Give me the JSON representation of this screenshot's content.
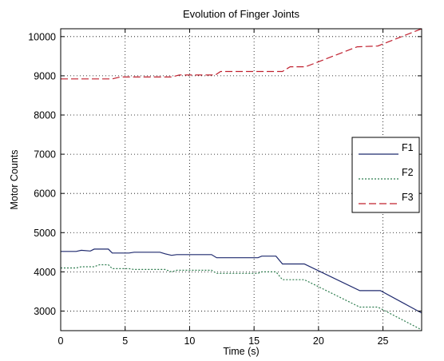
{
  "chart_data": {
    "type": "line",
    "title": "Evolution of Finger Joints",
    "xlabel": "Time (s)",
    "ylabel": "Motor Counts",
    "xlim": [
      0,
      28
    ],
    "ylim": [
      2500,
      10200
    ],
    "xticks": [
      0,
      5,
      10,
      15,
      20,
      25
    ],
    "yticks": [
      3000,
      4000,
      5000,
      6000,
      7000,
      8000,
      9000,
      10000
    ],
    "grid": true,
    "legend": "right",
    "series": [
      {
        "name": "F1",
        "color": "#1f2a6e",
        "dash": "solid",
        "x": [
          0,
          1.2,
          1.6,
          2.3,
          2.6,
          3.7,
          4.0,
          5.3,
          5.7,
          7.7,
          8.1,
          8.6,
          9.0,
          11.7,
          12.1,
          15.3,
          15.6,
          16.7,
          17.2,
          18.9,
          23.2,
          24.8,
          28
        ],
        "y": [
          4520,
          4520,
          4550,
          4530,
          4580,
          4580,
          4480,
          4480,
          4500,
          4500,
          4460,
          4420,
          4440,
          4440,
          4360,
          4360,
          4400,
          4400,
          4200,
          4200,
          3520,
          3520,
          2950
        ]
      },
      {
        "name": "F2",
        "color": "#2e7d4f",
        "dash": "dotted",
        "x": [
          0,
          1.2,
          1.6,
          2.6,
          3.0,
          3.7,
          4.0,
          5.3,
          5.7,
          8.1,
          8.6,
          9.0,
          11.7,
          12.1,
          15.3,
          15.6,
          16.7,
          17.2,
          18.9,
          23.2,
          24.6,
          28
        ],
        "y": [
          4100,
          4100,
          4130,
          4130,
          4180,
          4180,
          4080,
          4080,
          4060,
          4060,
          4000,
          4040,
          4040,
          3960,
          3960,
          4000,
          4000,
          3800,
          3800,
          3100,
          3100,
          2520
        ]
      },
      {
        "name": "F3",
        "color": "#c0202f",
        "dash": "dashed",
        "x": [
          0,
          4.0,
          4.6,
          8.6,
          9.2,
          12.0,
          12.4,
          17.2,
          17.8,
          19.0,
          23.0,
          24.6,
          28
        ],
        "y": [
          8920,
          8920,
          8970,
          8970,
          9020,
          9020,
          9110,
          9110,
          9230,
          9230,
          9740,
          9760,
          10200
        ]
      }
    ]
  }
}
